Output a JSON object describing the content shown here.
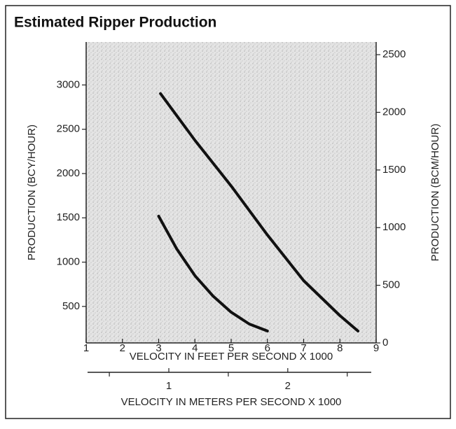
{
  "chart_data": {
    "type": "line",
    "title": "Estimated Ripper Production",
    "xlabel": "VELOCITY IN FEET PER SECOND X 1000",
    "x2label": "VELOCITY IN METERS PER SECOND X 1000",
    "ylabel": "PRODUCTION (BCY/HOUR)",
    "y2label": "PRODUCTION (BCM/HOUR)",
    "xlim": [
      1,
      9
    ],
    "xticks": [
      1,
      2,
      3,
      4,
      5,
      6,
      7,
      8,
      9
    ],
    "x2lim": [
      0.305,
      2.743
    ],
    "x2ticks": [
      1,
      2
    ],
    "x2minor": [
      0.5,
      1.5,
      2.5
    ],
    "ylim": [
      88,
      3485
    ],
    "yticks": [
      500,
      1000,
      1500,
      2000,
      2500,
      3000
    ],
    "y2lim": [
      0,
      2610
    ],
    "y2ticks": [
      0,
      500,
      1000,
      1500,
      2000,
      2500
    ],
    "series": [
      {
        "color": "#111111",
        "x": [
          3.05,
          4,
          5,
          6,
          7,
          8,
          8.5
        ],
        "values": [
          2903,
          2375,
          1860,
          1306,
          791,
          396,
          222
        ]
      },
      {
        "color": "#111111",
        "x": [
          3,
          3.5,
          4,
          4.5,
          5,
          5.5,
          6
        ],
        "values": [
          1519,
          1148,
          847,
          617,
          435,
          301,
          222
        ]
      }
    ]
  }
}
